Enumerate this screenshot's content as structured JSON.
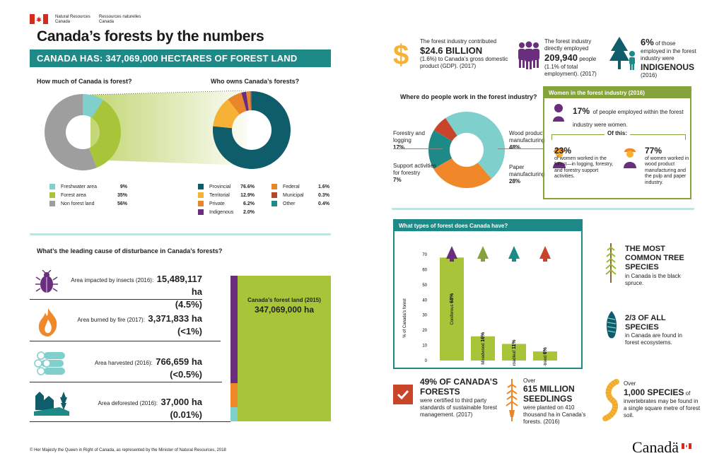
{
  "header": {
    "nrcan_en": "Natural Resources\nCanada",
    "nrcan_fr": "Ressources naturelles\nCanada",
    "title": "Canada’s forests by the numbers",
    "banner": "CANADA HAS: 347,069,000 HECTARES OF FOREST LAND"
  },
  "forest_share": {
    "heading": "How much of Canada is forest?",
    "items": [
      {
        "label": "Freshwater area",
        "value": "9%",
        "color": "#7fcfcd"
      },
      {
        "label": "Forest area",
        "value": "35%",
        "color": "#a8c53a"
      },
      {
        "label": "Non forest land",
        "value": "56%",
        "color": "#9e9e9e"
      }
    ]
  },
  "ownership": {
    "heading": "Who owns Canada’s forests?",
    "items": [
      {
        "label": "Provincial",
        "value": "76.6%",
        "color": "#0f5c6b"
      },
      {
        "label": "Territorial",
        "value": "12.9%",
        "color": "#f5b235"
      },
      {
        "label": "Private",
        "value": "6.2%",
        "color": "#e8862a"
      },
      {
        "label": "Indigenous",
        "value": "2.0%",
        "color": "#6b2d7e"
      },
      {
        "label": "Federal",
        "value": "1.6%",
        "color": "#e8862a"
      },
      {
        "label": "Municipal",
        "value": "0.3%",
        "color": "#b24a2a"
      },
      {
        "label": "Other",
        "value": "0.4%",
        "color": "#1e8a87"
      }
    ]
  },
  "disturbance": {
    "heading": "What’s the leading cause of disturbance in Canada’s forests?",
    "rows": [
      {
        "label": "Area impacted by insects (2016):",
        "value": "15,489,117 ha",
        "pct": "(4.5%)"
      },
      {
        "label": "Area burned by fire (2017):",
        "value": "3,371,833 ha",
        "pct": "(<1%)"
      },
      {
        "label": "Area harvested (2016):",
        "value": "766,659 ha",
        "pct": "(<0.5%)"
      },
      {
        "label": "Area deforested (2016):",
        "value": "37,000 ha",
        "pct": "(0.01%)"
      }
    ],
    "box_label": "Canada’s forest land (2015)",
    "box_value": "347,069,000 ha"
  },
  "footer": {
    "copyright": "© Her Majesty the Queen in Right of Canada, as represented by the Minister of Natural Resources, 2018",
    "wordmark": "Canadä"
  },
  "economy": {
    "gdp_pre": "The forest industry contributed",
    "gdp_value": "$24.6 BILLION",
    "gdp_post": "(1.6%) to Canada’s gross domestic product (GDP). (2017)",
    "emp_pre": "The forest industry directly employed",
    "emp_value": "209,940",
    "emp_post": "people (1.1% of total employment). (2017)",
    "ind_value": "6%",
    "ind_pre": "of those employed in the forest industry were",
    "ind_word": "INDIGENOUS",
    "ind_year": "(2016)"
  },
  "work": {
    "heading": "Where do people work in the forest industry?",
    "items": [
      {
        "label": "Forestry and logging",
        "value": "17%",
        "color": "#1e8a87"
      },
      {
        "label": "Support activities for forestry",
        "value": "7%",
        "color": "#c9452a"
      },
      {
        "label": "Wood product manufacturing",
        "value": "48%",
        "color": "#7fcfcd"
      },
      {
        "label": "Paper manufacturing",
        "value": "28%",
        "color": "#f0882a"
      }
    ]
  },
  "women": {
    "heading": "Women in the forest industry (2016)",
    "main_value": "17%",
    "main_text": "of people employed within the forest industry were women.",
    "of_this": "Of this:",
    "a_value": "23%",
    "a_text": "of women worked in the forest—in logging, forestry, and forestry support activities.",
    "b_value": "77%",
    "b_text": "of women worked in wood product manufacturing and the pulp and paper industry."
  },
  "forest_types": {
    "heading": "What types of forest does Canada have?",
    "ylabel": "% of Canada’s forest"
  },
  "chart_data": {
    "type": "bar",
    "categories": [
      "Coniferous",
      "Mixedwood",
      "Broadleaf",
      "Temporarily non-treed"
    ],
    "values": [
      68,
      16,
      11,
      6
    ],
    "ylabel": "% of Canada’s forest",
    "ylim": [
      0,
      70
    ],
    "yticks": [
      0,
      10,
      20,
      30,
      40,
      50,
      60,
      70
    ],
    "bar_color": "#a8c53a"
  },
  "facts": {
    "spruce_title": "THE MOST COMMON TREE SPECIES",
    "spruce_text": "in Canada is the black spruce.",
    "species_title": "2/3 OF ALL SPECIES",
    "species_text": "in Canada are found in forest ecosystems.",
    "cert_title": "49% OF CANADA’S FORESTS",
    "cert_text": "were certified to third party standards of sustainable forest management. (2017)",
    "seed_pre": "Over",
    "seed_title": "615 MILLION SEEDLINGS",
    "seed_text": "were planted on 410 thousand ha in Canada’s forests. (2016)",
    "inv_pre": "Over",
    "inv_title": "1,000 SPECIES",
    "inv_text": "of invertebrates may be found in a single square metre of forest soil."
  }
}
